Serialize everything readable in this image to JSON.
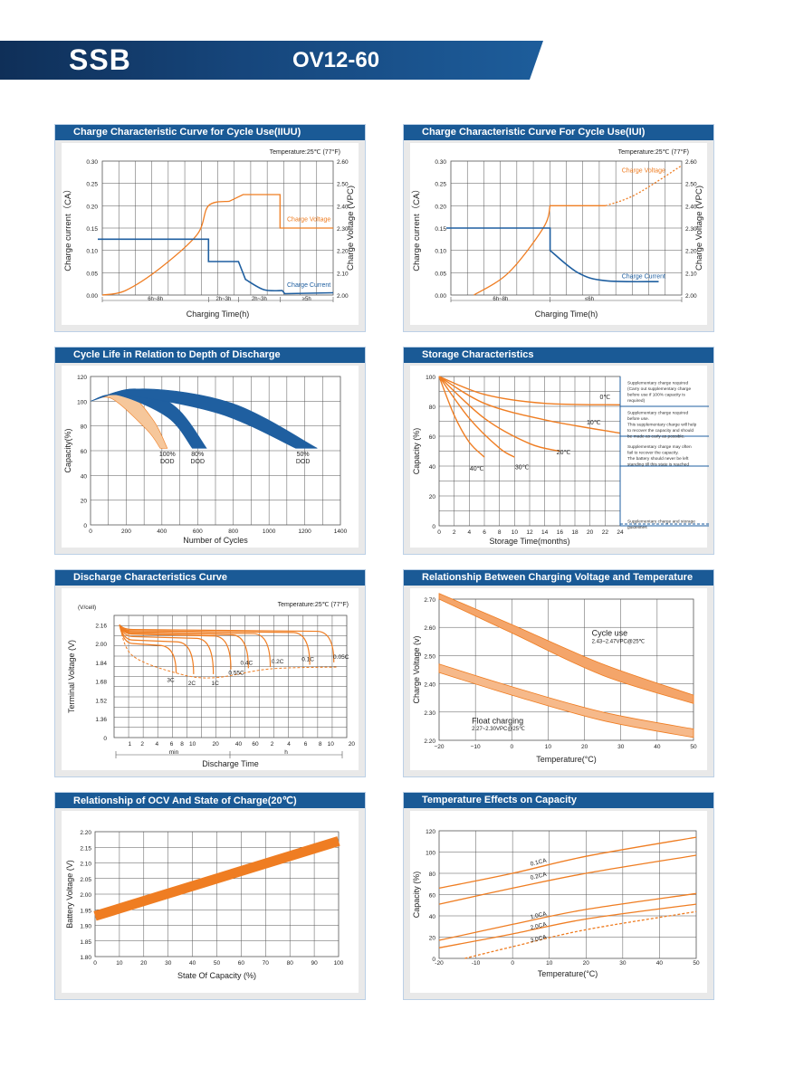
{
  "header": {
    "brand": "SSB",
    "model": "OV12-60"
  },
  "colors": {
    "banner": "#1a5a96",
    "orange": "#ef7d22",
    "blue": "#1f5fa0",
    "grid": "#555555"
  },
  "chart_data": [
    {
      "id": "c1",
      "type": "line",
      "title": "Charge Characteristic Curve for Cycle Use(IIUU)",
      "note": "Temperature:25℃ (77°F)",
      "xlabel": "Charging Time(h)",
      "ylabel": "Charge current（CA）",
      "y2label": "Charge Voltage (VPC)",
      "yticks": [
        "0.00",
        "0.05",
        "0.10",
        "0.15",
        "0.20",
        "0.25",
        "0.30"
      ],
      "y2ticks": [
        "2.00",
        "2.10",
        "2.20",
        "2.30",
        "2.40",
        "2.50",
        "2.60"
      ],
      "segments": [
        "6h~8h",
        "2h~3h",
        "2h~3h",
        "≥5h"
      ],
      "series": [
        {
          "name": "Charge Voltage",
          "values": [
            [
              0,
              2.0
            ],
            [
              0.1,
              2.02
            ],
            [
              0.25,
              2.12
            ],
            [
              0.41,
              2.27
            ],
            [
              0.46,
              2.4
            ],
            [
              0.55,
              2.42
            ],
            [
              0.61,
              2.45
            ],
            [
              0.77,
              2.45
            ],
            [
              0.77,
              2.3
            ],
            [
              1.0,
              2.3
            ]
          ]
        },
        {
          "name": "Charge Current",
          "values": [
            [
              -0.1,
              0.125
            ],
            [
              0.46,
              0.125
            ],
            [
              0.46,
              0.075
            ],
            [
              0.59,
              0.075
            ],
            [
              0.62,
              0.035
            ],
            [
              0.7,
              0.012
            ],
            [
              0.78,
              0.01
            ],
            [
              0.79,
              0.003
            ],
            [
              1.0,
              0.005
            ]
          ]
        }
      ]
    },
    {
      "id": "c2",
      "type": "line",
      "title": "Charge Characteristic Curve For Cycle Use(IUI)",
      "note": "Temperature:25℃ (77°F)",
      "xlabel": "Charging Time(h)",
      "ylabel": "Charge current（CA）",
      "y2label": "Charge Voltage (VPC)",
      "yticks": [
        "0.00",
        "0.05",
        "0.10",
        "0.15",
        "0.20",
        "0.25",
        "0.30"
      ],
      "y2ticks": [
        "2.00",
        "2.10",
        "2.20",
        "2.30",
        "2.40",
        "2.50",
        "2.60"
      ],
      "segments": [
        "6h~8h",
        "≤6h"
      ],
      "series": [
        {
          "name": "Charge Voltage",
          "values": [
            [
              0.1,
              2.0
            ],
            [
              0.25,
              2.1
            ],
            [
              0.4,
              2.3
            ],
            [
              0.43,
              2.4
            ],
            [
              0.67,
              2.4
            ],
            [
              0.8,
              2.45
            ],
            [
              1.0,
              2.58
            ]
          ]
        },
        {
          "name": "Charge Current",
          "values": [
            [
              -0.1,
              0.15
            ],
            [
              0.43,
              0.15
            ],
            [
              0.43,
              0.1
            ],
            [
              0.55,
              0.05
            ],
            [
              0.67,
              0.032
            ],
            [
              0.9,
              0.03
            ]
          ]
        }
      ]
    },
    {
      "id": "c3",
      "type": "area",
      "title": "Cycle Life in Relation to Depth of Discharge",
      "xlabel": "Number of Cycles",
      "ylabel": "Capacity(%)",
      "xticks": [
        "0",
        "200",
        "400",
        "600",
        "800",
        "1000",
        "1200",
        "1400"
      ],
      "yticks": [
        "0",
        "20",
        "40",
        "60",
        "80",
        "100",
        "120"
      ],
      "series": [
        {
          "name": "100% DOD",
          "values": [
            [
              0,
              100
            ],
            [
              200,
              107
            ],
            [
              350,
              85
            ],
            [
              430,
              62
            ]
          ]
        },
        {
          "name": "80% DOD",
          "values": [
            [
              0,
              100
            ],
            [
              250,
              110
            ],
            [
              480,
              95
            ],
            [
              650,
              62
            ]
          ]
        },
        {
          "name": "50% DOD",
          "values": [
            [
              0,
              100
            ],
            [
              300,
              110
            ],
            [
              800,
              98
            ],
            [
              1270,
              62
            ]
          ]
        }
      ],
      "labels": [
        "100%",
        "DOD",
        "80%",
        "DOD",
        "50%",
        "DOD"
      ]
    },
    {
      "id": "c4",
      "type": "line",
      "title": "Storage Characteristics",
      "xlabel": "Storage  Time(months)",
      "ylabel": "Capacity  (%)",
      "xticks": [
        "0",
        "2",
        "4",
        "6",
        "8",
        "10",
        "12",
        "14",
        "16",
        "18",
        "20",
        "22",
        "24"
      ],
      "yticks": [
        "0",
        "20",
        "40",
        "60",
        "80",
        "100"
      ],
      "series": [
        {
          "name": "0℃",
          "values": [
            [
              0,
              100
            ],
            [
              6,
              88
            ],
            [
              14,
              82
            ],
            [
              24,
              81
            ]
          ]
        },
        {
          "name": "10℃",
          "values": [
            [
              0,
              100
            ],
            [
              6,
              82
            ],
            [
              14,
              71
            ],
            [
              24,
              62
            ]
          ]
        },
        {
          "name": "20℃",
          "values": [
            [
              0,
              100
            ],
            [
              6,
              72
            ],
            [
              12,
              55
            ],
            [
              16,
              50
            ]
          ]
        },
        {
          "name": "30℃",
          "values": [
            [
              0,
              100
            ],
            [
              4,
              72
            ],
            [
              8,
              52
            ],
            [
              10,
              46
            ]
          ]
        },
        {
          "name": "40℃",
          "values": [
            [
              0,
              100
            ],
            [
              2,
              74
            ],
            [
              4,
              56
            ],
            [
              6,
              46
            ]
          ]
        }
      ],
      "notes": [
        [
          "Supplementary charge required",
          "(Carry out supplementary charge",
          "before use if 100% capacity is",
          "required)"
        ],
        [
          "Supplementary charge required",
          "before use.",
          "This supplementary charge will help",
          "to recover the capacity and should",
          "be made  as early as possible."
        ],
        [
          "Supplementary charge may often",
          "fail to recover the capacity.",
          "The battery should never be left",
          "standing till this state is reached"
        ],
        [
          "Supplementary charge and storage",
          "guidelines"
        ]
      ]
    },
    {
      "id": "c5",
      "type": "line",
      "title": "Discharge Characteristics Curve",
      "note": "Temperature:25℃ (77°F)",
      "xlabel": "Discharge  Time",
      "ylabel": "Terminal Voltage  (V)",
      "yunit": "(V/cell)",
      "yticks": [
        "0",
        "1.36",
        "1.52",
        "1.68",
        "1.84",
        "2.00",
        "2.16"
      ],
      "xticks": [
        "1",
        "2",
        "4",
        "6",
        "8",
        "10",
        "20",
        "40",
        "60",
        "2",
        "4",
        "6",
        "8",
        "10",
        "20"
      ],
      "xgroups": [
        "min",
        "h"
      ],
      "series": [
        {
          "name": "3C",
          "values": [
            [
              0,
              2.0
            ],
            [
              0.25,
              1.75
            ]
          ]
        },
        {
          "name": "2C",
          "values": [
            [
              0,
              2.03
            ],
            [
              0.33,
              1.74
            ]
          ]
        },
        {
          "name": "1C",
          "values": [
            [
              0,
              2.06
            ],
            [
              0.42,
              1.74
            ]
          ]
        },
        {
          "name": "0.55C",
          "values": [
            [
              0,
              2.08
            ],
            [
              0.5,
              1.78
            ]
          ]
        },
        {
          "name": "0.4C",
          "values": [
            [
              0,
              2.09
            ],
            [
              0.58,
              1.79
            ]
          ]
        },
        {
          "name": "0.2C",
          "values": [
            [
              0,
              2.1
            ],
            [
              0.68,
              1.8
            ]
          ]
        },
        {
          "name": "0.1C",
          "values": [
            [
              0,
              2.11
            ],
            [
              0.86,
              1.82
            ]
          ]
        },
        {
          "name": "0.05C",
          "values": [
            [
              0,
              2.12
            ],
            [
              0.97,
              1.84
            ]
          ]
        }
      ]
    },
    {
      "id": "c6",
      "type": "area",
      "title": "Relationship Between Charging Voltage and Temperature",
      "xlabel": "Temperature(°C)",
      "ylabel": "Charge Voltage  (v)",
      "xticks": [
        "−20",
        "−10",
        "0",
        "10",
        "20",
        "30",
        "40",
        "50"
      ],
      "yticks": [
        "2.20",
        "2.30",
        "2.40",
        "2.50",
        "2.60",
        "2.70"
      ],
      "series": [
        {
          "name": "Cycle use",
          "sub": "2.43~2.47VPC@25℃",
          "upper": [
            [
              -20,
              2.72
            ],
            [
              0,
              2.61
            ],
            [
              25,
              2.47
            ],
            [
              50,
              2.36
            ]
          ],
          "lower": [
            [
              -20,
              2.7
            ],
            [
              0,
              2.58
            ],
            [
              25,
              2.43
            ],
            [
              50,
              2.33
            ]
          ]
        },
        {
          "name": "Float charging",
          "sub": "2.27~2.30VPC@25℃",
          "upper": [
            [
              -20,
              2.47
            ],
            [
              0,
              2.39
            ],
            [
              25,
              2.3
            ],
            [
              50,
              2.24
            ]
          ],
          "lower": [
            [
              -20,
              2.44
            ],
            [
              0,
              2.36
            ],
            [
              25,
              2.27
            ],
            [
              50,
              2.21
            ]
          ]
        }
      ]
    },
    {
      "id": "c7",
      "type": "line",
      "title": "Relationship of OCV And State of Charge(20℃)",
      "xlabel": "State Of Capacity (%)",
      "ylabel": "Battery Voltage (V)",
      "xticks": [
        "0",
        "10",
        "20",
        "30",
        "40",
        "50",
        "60",
        "70",
        "80",
        "90",
        "100"
      ],
      "yticks": [
        "1.80",
        "1.85",
        "1.90",
        "1.95",
        "2.00",
        "2.05",
        "2.10",
        "2.15",
        "2.20"
      ],
      "series": [
        {
          "name": "OCV",
          "values": [
            [
              0,
              1.93
            ],
            [
              100,
              2.17
            ]
          ]
        }
      ]
    },
    {
      "id": "c8",
      "type": "line",
      "title": "Temperature Effects on Capacity",
      "xlabel": "Temperature(°C)",
      "ylabel": "Capacity (%)",
      "xticks": [
        "-20",
        "-10",
        "0",
        "10",
        "20",
        "30",
        "40",
        "50"
      ],
      "yticks": [
        "0",
        "20",
        "40",
        "60",
        "80",
        "100",
        "120"
      ],
      "series": [
        {
          "name": "0.1CA",
          "values": [
            [
              -20,
              66
            ],
            [
              0,
              80
            ],
            [
              20,
              96
            ],
            [
              50,
              114
            ]
          ]
        },
        {
          "name": "0.2CA",
          "values": [
            [
              -20,
              51
            ],
            [
              0,
              66
            ],
            [
              20,
              80
            ],
            [
              50,
              97
            ]
          ]
        },
        {
          "name": "1.0CA",
          "values": [
            [
              -20,
              17
            ],
            [
              0,
              32
            ],
            [
              20,
              46
            ],
            [
              50,
              61
            ]
          ]
        },
        {
          "name": "2.0CA",
          "values": [
            [
              -20,
              10
            ],
            [
              0,
              23
            ],
            [
              20,
              37
            ],
            [
              50,
              51
            ]
          ]
        },
        {
          "name": "3.0CA",
          "values": [
            [
              -13,
              0
            ],
            [
              0,
              11
            ],
            [
              20,
              27
            ],
            [
              50,
              44
            ]
          ]
        }
      ]
    }
  ]
}
